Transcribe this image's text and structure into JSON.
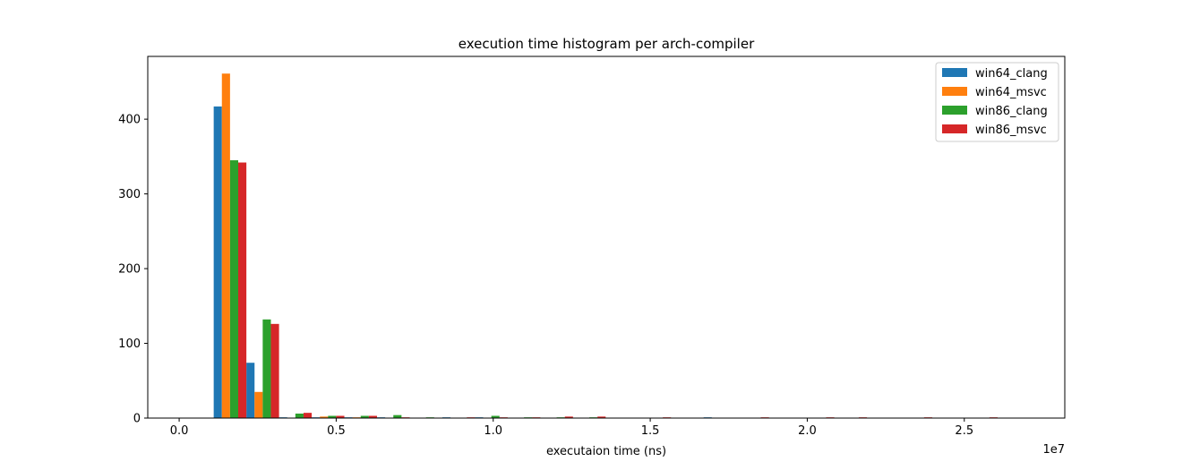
{
  "chart_data": {
    "type": "bar",
    "title": "execution time histogram per arch-compiler",
    "xlabel": "executaion time (ns)",
    "ylabel": "",
    "x_offset_label": "1e7",
    "xlim": [
      -1000000,
      28200000
    ],
    "ylim": [
      0,
      484
    ],
    "x_ticks": [
      0,
      5000000,
      10000000,
      15000000,
      20000000,
      25000000
    ],
    "x_tick_labels": [
      "0.0",
      "0.5",
      "1.0",
      "1.5",
      "2.0",
      "2.5"
    ],
    "y_ticks": [
      0,
      100,
      200,
      300,
      400
    ],
    "y_tick_labels": [
      "0",
      "100",
      "200",
      "300",
      "400"
    ],
    "legend_position": "top-right",
    "grid": false,
    "bin_edges": [
      1100000,
      2140000,
      3180000,
      4220000,
      5260000,
      6300000,
      7340000,
      8380000,
      9420000,
      10460000,
      11500000,
      12540000,
      13580000,
      14620000,
      15660000,
      16700000,
      17740000,
      18780000,
      19820000,
      20860000,
      21900000,
      22940000,
      23980000,
      25020000,
      26060000,
      27100000
    ],
    "series": [
      {
        "name": "win64_clang",
        "color": "#1f77b4",
        "values": [
          417,
          74,
          1,
          1,
          1,
          1,
          0,
          1,
          1,
          0,
          0,
          0,
          0,
          0,
          0,
          1,
          0,
          0,
          0,
          0,
          0,
          0,
          0,
          0,
          0
        ]
      },
      {
        "name": "win64_msvc",
        "color": "#ff7f0e",
        "values": [
          461,
          35,
          0,
          2,
          1,
          0,
          0,
          0,
          0,
          0,
          0,
          0,
          0,
          0,
          0,
          0,
          0,
          0,
          0,
          0,
          0,
          0,
          0,
          0,
          0
        ]
      },
      {
        "name": "win86_clang",
        "color": "#2ca02c",
        "values": [
          345,
          132,
          6,
          3,
          3,
          4,
          1,
          0,
          3,
          1,
          1,
          1,
          0,
          0,
          0,
          0,
          0,
          0,
          0,
          0,
          0,
          0,
          0,
          0,
          0
        ]
      },
      {
        "name": "win86_msvc",
        "color": "#d62728",
        "values": [
          342,
          126,
          7,
          3,
          3,
          1,
          0,
          1,
          1,
          1,
          2,
          2,
          0,
          1,
          0,
          0,
          1,
          0,
          1,
          1,
          0,
          1,
          0,
          1,
          0
        ]
      }
    ]
  }
}
